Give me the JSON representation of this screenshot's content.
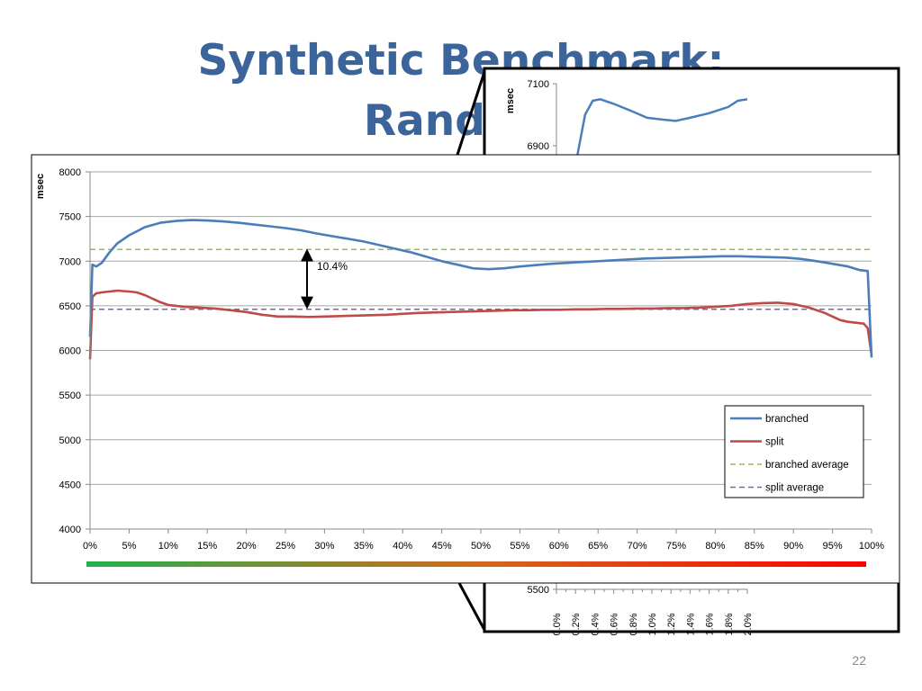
{
  "slide": {
    "title_line1": "Synthetic Benchmark:",
    "title_line2": "Random",
    "page_number": "22"
  },
  "colors": {
    "title": "#3b659a",
    "branched": "#4a7ebb",
    "split": "#be4b48",
    "branched_average": "#9bbb59",
    "split_average": "#8064a2",
    "gradient_start": "#22b14c",
    "gradient_end": "#ff0000"
  },
  "chart_data": [
    {
      "type": "line",
      "role": "main",
      "ylabel": "msec",
      "xlabel": "",
      "ylim": [
        4000,
        8000
      ],
      "yticks": [
        4000,
        4500,
        5000,
        5500,
        6000,
        6500,
        7000,
        7500,
        8000
      ],
      "xlim": [
        0,
        100
      ],
      "xticks": [
        "0%",
        "5%",
        "10%",
        "15%",
        "20%",
        "25%",
        "30%",
        "35%",
        "40%",
        "45%",
        "50%",
        "55%",
        "60%",
        "65%",
        "70%",
        "75%",
        "80%",
        "85%",
        "90%",
        "95%",
        "100%"
      ],
      "grid": "horizontal",
      "legend_position": "lower-right",
      "annotation": {
        "text": "10.4%",
        "x": 28,
        "from": 7130,
        "to": 6460
      },
      "series": [
        {
          "name": "branched",
          "style": "solid",
          "x": [
            0,
            0.3,
            0.8,
            1.5,
            2.5,
            3.5,
            5,
            7,
            9,
            11,
            13,
            15,
            17,
            19,
            21,
            23,
            25,
            27,
            29,
            31,
            33,
            35,
            37,
            39,
            41,
            43,
            45,
            47,
            49,
            51,
            53,
            55,
            57,
            59,
            61,
            63,
            65,
            67,
            69,
            71,
            73,
            75,
            77,
            79,
            81,
            83,
            85,
            87,
            89,
            91,
            93,
            95,
            97,
            98.5,
            99.5,
            100
          ],
          "y": [
            6150,
            6960,
            6940,
            6980,
            7100,
            7200,
            7290,
            7380,
            7430,
            7450,
            7460,
            7455,
            7445,
            7430,
            7410,
            7390,
            7370,
            7345,
            7310,
            7280,
            7250,
            7220,
            7180,
            7140,
            7100,
            7050,
            7000,
            6960,
            6920,
            6910,
            6920,
            6940,
            6955,
            6970,
            6980,
            6990,
            7000,
            7010,
            7020,
            7030,
            7035,
            7040,
            7045,
            7050,
            7055,
            7055,
            7050,
            7045,
            7040,
            7025,
            7000,
            6970,
            6940,
            6900,
            6890,
            5920
          ]
        },
        {
          "name": "split",
          "style": "solid",
          "x": [
            0,
            0.3,
            0.8,
            1.5,
            2.5,
            3.5,
            5,
            6,
            7,
            8,
            9,
            10,
            12,
            14,
            16,
            18,
            20,
            22,
            24,
            26,
            28,
            30,
            32,
            34,
            36,
            38,
            40,
            42,
            44,
            46,
            48,
            50,
            52,
            54,
            56,
            58,
            60,
            62,
            64,
            66,
            68,
            70,
            72,
            74,
            76,
            78,
            80,
            82,
            84,
            86,
            88,
            90,
            92,
            94,
            95,
            96,
            97,
            98,
            99,
            99.5,
            100
          ],
          "y": [
            5900,
            6600,
            6640,
            6650,
            6660,
            6670,
            6660,
            6650,
            6620,
            6580,
            6540,
            6510,
            6490,
            6480,
            6470,
            6450,
            6430,
            6400,
            6380,
            6380,
            6375,
            6380,
            6385,
            6390,
            6395,
            6400,
            6410,
            6420,
            6425,
            6430,
            6435,
            6440,
            6445,
            6450,
            6450,
            6455,
            6455,
            6460,
            6460,
            6465,
            6465,
            6470,
            6470,
            6475,
            6475,
            6480,
            6490,
            6500,
            6520,
            6530,
            6535,
            6520,
            6480,
            6420,
            6380,
            6340,
            6320,
            6310,
            6300,
            6250,
            5950
          ]
        },
        {
          "name": "branched average",
          "style": "dashed",
          "x": [
            0,
            100
          ],
          "y": [
            7130,
            7130
          ]
        },
        {
          "name": "split average",
          "style": "dashed",
          "x": [
            0,
            100
          ],
          "y": [
            6460,
            6460
          ]
        }
      ]
    },
    {
      "type": "line",
      "role": "zoom-inset",
      "ylabel": "msec",
      "yticks_visible": [
        7100,
        6900,
        5500
      ],
      "xticks": [
        "0.0%",
        "0.2%",
        "0.4%",
        "0.6%",
        "0.8%",
        "1.0%",
        "1.2%",
        "1.4%",
        "1.6%",
        "1.8%",
        "2.0%"
      ],
      "series": [
        {
          "name": "branched",
          "x": [
            0.22,
            0.3,
            0.38,
            0.46,
            0.6,
            0.8,
            0.95,
            1.1,
            1.25,
            1.4,
            1.6,
            1.8,
            1.9,
            2.0
          ],
          "y": [
            6870,
            7000,
            7045,
            7050,
            7035,
            7010,
            6990,
            6985,
            6980,
            6990,
            7005,
            7025,
            7045,
            7050
          ]
        }
      ]
    }
  ]
}
